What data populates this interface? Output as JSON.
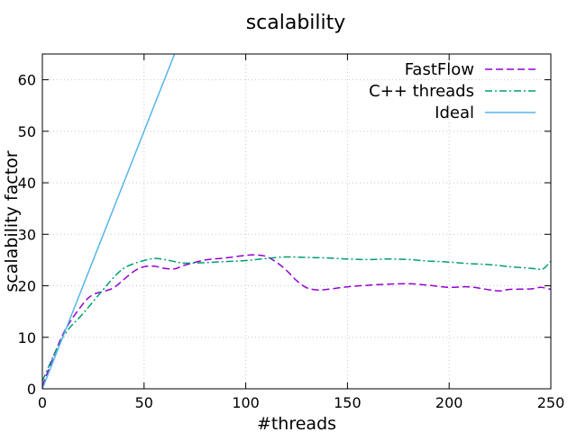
{
  "chart_data": {
    "type": "line",
    "title": "scalability",
    "xlabel": "#threads",
    "ylabel": "scalability factor",
    "xlim": [
      0,
      250
    ],
    "ylim": [
      0,
      65
    ],
    "xticks": [
      0,
      50,
      100,
      150,
      200,
      250
    ],
    "yticks": [
      0,
      10,
      20,
      30,
      40,
      50,
      60
    ],
    "grid": true,
    "legend_position": "top-right",
    "series": [
      {
        "name": "FastFlow",
        "color": "#9400d3",
        "dash": "dashed",
        "x": [
          0,
          10,
          20,
          25,
          30,
          35,
          40,
          45,
          50,
          55,
          60,
          65,
          70,
          80,
          90,
          100,
          105,
          110,
          115,
          120,
          125,
          130,
          135,
          140,
          150,
          160,
          170,
          180,
          190,
          200,
          210,
          220,
          225,
          230,
          240,
          245,
          250
        ],
        "y": [
          0.5,
          10.5,
          16.5,
          18.3,
          18.9,
          19.6,
          21.2,
          22.8,
          23.7,
          23.8,
          23.4,
          23.3,
          24.0,
          25.0,
          25.4,
          25.9,
          26.0,
          25.7,
          24.6,
          23.0,
          21.0,
          19.6,
          19.2,
          19.3,
          19.8,
          20.1,
          20.3,
          20.4,
          20.1,
          19.7,
          19.8,
          19.2,
          19.0,
          19.3,
          19.4,
          19.7,
          19.3
        ]
      },
      {
        "name": "C++ threads",
        "color": "#009e73",
        "dash": "dash-dot",
        "x": [
          0,
          10,
          20,
          30,
          35,
          40,
          45,
          50,
          55,
          60,
          65,
          70,
          80,
          90,
          100,
          110,
          120,
          130,
          140,
          150,
          160,
          170,
          180,
          190,
          200,
          210,
          220,
          230,
          240,
          245,
          247,
          250
        ],
        "y": [
          1.5,
          10.0,
          14.6,
          19.3,
          21.6,
          23.4,
          24.3,
          24.9,
          25.3,
          25.1,
          24.7,
          24.4,
          24.5,
          24.7,
          24.9,
          25.3,
          25.6,
          25.5,
          25.4,
          25.2,
          25.1,
          25.2,
          25.1,
          24.8,
          24.6,
          24.3,
          24.1,
          23.7,
          23.4,
          23.2,
          23.5,
          24.8
        ]
      },
      {
        "name": "Ideal",
        "color": "#56b4e9",
        "dash": "solid",
        "x": [
          0,
          65
        ],
        "y": [
          0,
          65
        ]
      }
    ]
  }
}
